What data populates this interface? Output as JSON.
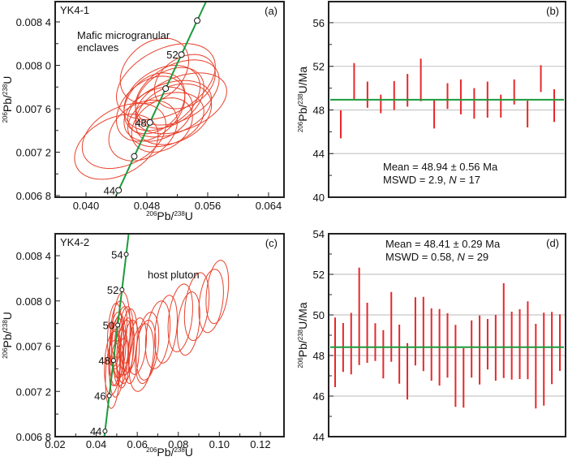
{
  "colors": {
    "ellipse": "#e8412c",
    "concordia": "#1a9b3c",
    "bar": "#e8272a",
    "mean": "#1a9b3c",
    "grid": "#c8c8c8",
    "frame": "#222222"
  },
  "chart_data": [
    {
      "id": "a",
      "type": "scatter",
      "panel_label": "(a)",
      "sample": "YK4-1",
      "annotation": [
        "Mafic microgranular",
        "enclaves"
      ],
      "xlabel": {
        "sup1": "206",
        "base1": "Pb/",
        "sup2": "238",
        "base2": "U"
      },
      "ylabel": {
        "sup1": "206",
        "base1": "Pb/",
        "sup2": "238",
        "base2": "U"
      },
      "xlim": [
        0.03595,
        0.06603
      ],
      "ylim": [
        0.006785,
        0.008587
      ],
      "xticks": [
        {
          "v": 0.04,
          "label": "0.040"
        },
        {
          "v": 0.048,
          "label": "0.048"
        },
        {
          "v": 0.056,
          "label": "0.056"
        },
        {
          "v": 0.064,
          "label": "0.064"
        }
      ],
      "xminor": [
        0.036,
        0.044,
        0.052,
        0.06
      ],
      "yticks": [
        {
          "v": 0.0084,
          "label": "0.008 4"
        },
        {
          "v": 0.008,
          "label": "0.008 0"
        },
        {
          "v": 0.0076,
          "label": "0.007 6"
        },
        {
          "v": 0.0072,
          "label": "0.007 2"
        },
        {
          "v": 0.0068,
          "label": "0.006 8"
        }
      ],
      "yminor": [
        0.0082,
        0.0078,
        0.0074,
        0.007
      ],
      "concordia_ages": [
        44,
        46,
        48,
        50,
        52,
        54
      ],
      "concordia_labels": [
        {
          "age": 44,
          "label": "44"
        },
        {
          "age": 48,
          "label": "48"
        },
        {
          "age": 52,
          "label": "52"
        }
      ],
      "ellipses": [
        [
          0.0505,
          0.00785,
          0.0065,
          0.00035,
          0.4
        ],
        [
          0.049,
          0.00795,
          0.0045,
          0.0003,
          0.3
        ],
        [
          0.052,
          0.00775,
          0.0055,
          0.0003,
          0.4
        ],
        [
          0.0525,
          0.00765,
          0.006,
          0.00028,
          0.4
        ],
        [
          0.05,
          0.0077,
          0.005,
          0.0003,
          0.35
        ],
        [
          0.051,
          0.0076,
          0.0055,
          0.00026,
          0.35
        ],
        [
          0.0495,
          0.00755,
          0.0045,
          0.00025,
          0.3
        ],
        [
          0.0505,
          0.0075,
          0.005,
          0.00025,
          0.3
        ],
        [
          0.05,
          0.00745,
          0.004,
          0.00025,
          0.3
        ],
        [
          0.0515,
          0.00755,
          0.005,
          0.00028,
          0.3
        ],
        [
          0.049,
          0.00765,
          0.004,
          0.00028,
          0.3
        ],
        [
          0.045,
          0.00735,
          0.0055,
          0.0003,
          0.35
        ],
        [
          0.044,
          0.00725,
          0.0055,
          0.0003,
          0.35
        ],
        [
          0.0475,
          0.0074,
          0.0045,
          0.00028,
          0.3
        ],
        [
          0.053,
          0.00785,
          0.004,
          0.00025,
          0.3
        ],
        [
          0.0485,
          0.0076,
          0.0045,
          0.0003,
          0.35
        ],
        [
          0.051,
          0.0077,
          0.0045,
          0.00028,
          0.35
        ]
      ]
    },
    {
      "id": "b",
      "type": "bar",
      "panel_label": "(b)",
      "ylabel": {
        "sup1": "206",
        "base1": "Pb/",
        "sup2": "238",
        "base2": "U/Ma"
      },
      "ylim": [
        40,
        57.93
      ],
      "yticks": [
        {
          "v": 56,
          "label": "56"
        },
        {
          "v": 52,
          "label": "52"
        },
        {
          "v": 48,
          "label": "48"
        },
        {
          "v": 44,
          "label": "44"
        },
        {
          "v": 40,
          "label": "40"
        }
      ],
      "yminor": [
        54,
        50,
        46,
        42
      ],
      "mean": 48.94,
      "mean_text": "Mean = 48.94 ± 0.56 Ma",
      "mswd_text": {
        "pre": "MSWD = 2.9, ",
        "n": "N",
        "post": " = 17"
      },
      "error_bars": [
        [
          45.4,
          47.96
        ],
        [
          49.0,
          52.3
        ],
        [
          48.2,
          50.6
        ],
        [
          47.7,
          49.4
        ],
        [
          48.0,
          50.65
        ],
        [
          48.3,
          51.3
        ],
        [
          48.8,
          52.7
        ],
        [
          46.3,
          49.0
        ],
        [
          48.1,
          50.45
        ],
        [
          47.6,
          50.8
        ],
        [
          47.2,
          50.0
        ],
        [
          47.3,
          50.6
        ],
        [
          47.3,
          49.4
        ],
        [
          48.5,
          50.8
        ],
        [
          46.4,
          48.85
        ],
        [
          49.65,
          52.1
        ],
        [
          46.9,
          49.9
        ]
      ]
    },
    {
      "id": "c",
      "type": "scatter",
      "panel_label": "(c)",
      "sample": "YK4-2",
      "annotation": [
        "host pluton"
      ],
      "xlabel": {
        "sup1": "206",
        "base1": "Pb/",
        "sup2": "238",
        "base2": "U"
      },
      "ylabel": {
        "sup1": "206",
        "base1": "Pb/",
        "sup2": "238",
        "base2": "U"
      },
      "xlim": [
        0.02,
        0.1315
      ],
      "ylim": [
        0.0068,
        0.008594
      ],
      "xticks": [
        {
          "v": 0.02,
          "label": "0.02"
        },
        {
          "v": 0.04,
          "label": "0.04"
        },
        {
          "v": 0.06,
          "label": "0.06"
        },
        {
          "v": 0.08,
          "label": "0.08"
        },
        {
          "v": 0.1,
          "label": "0.10"
        },
        {
          "v": 0.12,
          "label": "0.12"
        }
      ],
      "xminor": [
        0.03,
        0.05,
        0.07,
        0.09,
        0.11
      ],
      "yticks": [
        {
          "v": 0.0084,
          "label": "0.008 4"
        },
        {
          "v": 0.008,
          "label": "0.008 0"
        },
        {
          "v": 0.0076,
          "label": "0.007 6"
        },
        {
          "v": 0.0072,
          "label": "0.007 2"
        },
        {
          "v": 0.0068,
          "label": "0.006 8"
        }
      ],
      "yminor": [
        0.0082,
        0.0078,
        0.0074,
        0.007
      ],
      "concordia_ages": [
        44,
        46,
        48,
        50,
        52,
        54
      ],
      "concordia_labels": [
        {
          "age": 44,
          "label": "44"
        },
        {
          "age": 46,
          "label": "46"
        },
        {
          "age": 48,
          "label": "48"
        },
        {
          "age": 50,
          "label": "50"
        },
        {
          "age": 52,
          "label": "52"
        },
        {
          "age": 54,
          "label": "54"
        }
      ],
      "ellipses": [
        [
          0.052,
          0.0077,
          0.0045,
          0.00038,
          0.2
        ],
        [
          0.048,
          0.00745,
          0.004,
          0.00028,
          0.2
        ],
        [
          0.05,
          0.00755,
          0.0035,
          0.0003,
          0.2
        ],
        [
          0.051,
          0.0076,
          0.0035,
          0.00028,
          0.2
        ],
        [
          0.053,
          0.00765,
          0.004,
          0.0003,
          0.2
        ],
        [
          0.049,
          0.0075,
          0.003,
          0.00025,
          0.2
        ],
        [
          0.054,
          0.00755,
          0.004,
          0.00028,
          0.2
        ],
        [
          0.05,
          0.00765,
          0.0035,
          0.00025,
          0.2
        ],
        [
          0.052,
          0.0075,
          0.0035,
          0.00025,
          0.2
        ],
        [
          0.055,
          0.0076,
          0.0035,
          0.00025,
          0.2
        ],
        [
          0.048,
          0.00735,
          0.0035,
          0.0003,
          0.2
        ],
        [
          0.056,
          0.00765,
          0.004,
          0.00028,
          0.2
        ],
        [
          0.051,
          0.00775,
          0.004,
          0.00025,
          0.2
        ],
        [
          0.049,
          0.0077,
          0.0035,
          0.00028,
          0.2
        ],
        [
          0.053,
          0.00745,
          0.003,
          0.00022,
          0.2
        ],
        [
          0.057,
          0.00755,
          0.004,
          0.00028,
          0.2
        ],
        [
          0.05,
          0.0074,
          0.0035,
          0.00025,
          0.2
        ],
        [
          0.0545,
          0.0077,
          0.0035,
          0.00025,
          0.2
        ],
        [
          0.062,
          0.0075,
          0.006,
          0.0003,
          0.3
        ],
        [
          0.064,
          0.00755,
          0.005,
          0.00028,
          0.3
        ],
        [
          0.06,
          0.0076,
          0.0045,
          0.00025,
          0.3
        ],
        [
          0.065,
          0.0076,
          0.0055,
          0.0003,
          0.3
        ],
        [
          0.07,
          0.0077,
          0.006,
          0.0003,
          0.3
        ],
        [
          0.074,
          0.00775,
          0.0055,
          0.0003,
          0.3
        ],
        [
          0.081,
          0.00785,
          0.006,
          0.0003,
          0.3
        ],
        [
          0.085,
          0.0078,
          0.0055,
          0.00028,
          0.3
        ],
        [
          0.089,
          0.00795,
          0.006,
          0.0003,
          0.3
        ],
        [
          0.096,
          0.008,
          0.006,
          0.00028,
          0.3
        ],
        [
          0.099,
          0.00808,
          0.0055,
          0.00028,
          0.3
        ]
      ]
    },
    {
      "id": "d",
      "type": "bar",
      "panel_label": "(d)",
      "ylabel": {
        "sup1": "206",
        "base1": "Pb/",
        "sup2": "238",
        "base2": "U/Ma"
      },
      "ylim": [
        44,
        54
      ],
      "yticks": [
        {
          "v": 54,
          "label": "54"
        },
        {
          "v": 52,
          "label": "52"
        },
        {
          "v": 50,
          "label": "50"
        },
        {
          "v": 48,
          "label": "48"
        },
        {
          "v": 46,
          "label": "46"
        },
        {
          "v": 44,
          "label": "44"
        }
      ],
      "yminor": [
        53,
        51,
        49,
        47,
        45
      ],
      "mean": 48.41,
      "mean_text": "Mean = 48.41 ± 0.29 Ma",
      "mswd_text": {
        "pre": "MSWD = 0.58, ",
        "n": "N",
        "post": " = 29"
      },
      "error_bars": [
        [
          46.44,
          49.87
        ],
        [
          47.19,
          49.6
        ],
        [
          47.07,
          50.1
        ],
        [
          47.53,
          52.33
        ],
        [
          47.64,
          50.6
        ],
        [
          47.73,
          49.59
        ],
        [
          46.87,
          49.25
        ],
        [
          47.69,
          51.13
        ],
        [
          46.61,
          49.52
        ],
        [
          45.83,
          48.61
        ],
        [
          47.51,
          50.87
        ],
        [
          47.23,
          50.89
        ],
        [
          46.76,
          50.32
        ],
        [
          46.52,
          50.29
        ],
        [
          46.91,
          50.08
        ],
        [
          45.47,
          49.51
        ],
        [
          45.43,
          48.36
        ],
        [
          46.91,
          49.73
        ],
        [
          46.57,
          49.97
        ],
        [
          47.31,
          49.8
        ],
        [
          46.76,
          50.0
        ],
        [
          46.89,
          51.56
        ],
        [
          46.81,
          50.16
        ],
        [
          46.84,
          50.28
        ],
        [
          46.83,
          50.67
        ],
        [
          45.39,
          49.56
        ],
        [
          45.53,
          50.11
        ],
        [
          46.59,
          50.15
        ],
        [
          47.24,
          50.03
        ]
      ]
    }
  ]
}
